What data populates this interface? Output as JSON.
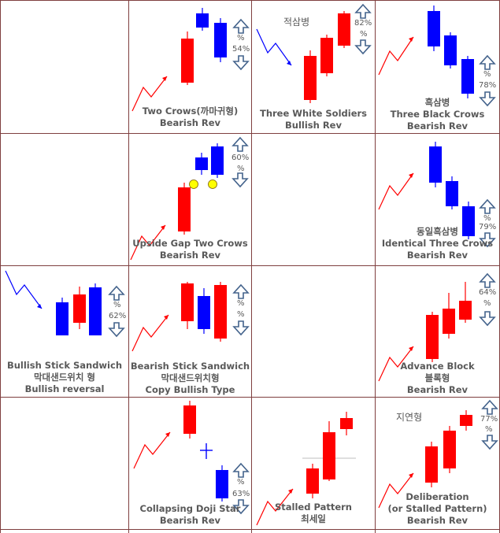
{
  "colors": {
    "bull": "#ff0000",
    "bear": "#0000ff",
    "border": "#7f3f3f",
    "text": "#595959",
    "arrow_outline": "#44638c",
    "doji_dot": "#ffff00"
  },
  "cells": [
    {
      "id": "r1c2",
      "name": "two-crows",
      "lines": [
        "Two Crows(까마귀형)",
        "Bearish Rev"
      ],
      "kor": "",
      "pct_up": "%",
      "pct_down": "54%"
    },
    {
      "id": "r1c3",
      "name": "three-white-soldiers",
      "lines": [
        "Three White Soldiers",
        "Bullish Rev"
      ],
      "kor": "적삼병",
      "pct_up": "82%",
      "pct_down": "%"
    },
    {
      "id": "r1c4",
      "name": "three-black-crows",
      "lines": [
        "흑삼병",
        "Three Black Crows",
        "Bearish Rev"
      ],
      "kor": "",
      "pct_up": "%",
      "pct_down": "78%"
    },
    {
      "id": "r2c2",
      "name": "upside-gap-two-crows",
      "lines": [
        "Upside Gap Two Crows",
        "Bearish Rev"
      ],
      "kor": "",
      "pct_up": "60%",
      "pct_down": "%"
    },
    {
      "id": "r2c4",
      "name": "identical-three-crows",
      "lines": [
        "동일흑삼병",
        "Identical Three Crows",
        "Bearish Rev"
      ],
      "kor": "",
      "pct_up": "%",
      "pct_down": "79%"
    },
    {
      "id": "r3c1",
      "name": "bullish-stick-sandwich",
      "lines": [
        "Bullish Stick Sandwich",
        "막대샌드위치 형",
        "Bullish reversal"
      ],
      "kor": "",
      "pct_up": "%",
      "pct_down": "62%"
    },
    {
      "id": "r3c2",
      "name": "bearish-stick-sandwich",
      "lines": [
        "Bearish Stick Sandwich",
        "막대샌드위치형",
        "Copy Bullish Type"
      ],
      "kor": "",
      "pct_up": "%",
      "pct_down": "%"
    },
    {
      "id": "r3c4",
      "name": "advance-block",
      "lines": [
        "Advance Block",
        "블록형",
        "Bearish Rev"
      ],
      "kor": "",
      "pct_up": "64%",
      "pct_down": "%"
    },
    {
      "id": "r4c2",
      "name": "collapsing-doji-star",
      "lines": [
        "Collapsing Doji Star",
        "Bearish Rev"
      ],
      "kor": "",
      "pct_up": "%",
      "pct_down": "63%"
    },
    {
      "id": "r4c3",
      "name": "stalled-pattern",
      "lines": [
        "Stalled Pattern",
        "최세일"
      ],
      "kor": "",
      "pct_up": "",
      "pct_down": ""
    },
    {
      "id": "r4c4",
      "name": "deliberation",
      "lines": [
        "Deliberation",
        "(or Stalled Pattern)",
        "Bearish Rev"
      ],
      "kor": "지연형",
      "pct_up": "77%",
      "pct_down": "%"
    }
  ]
}
